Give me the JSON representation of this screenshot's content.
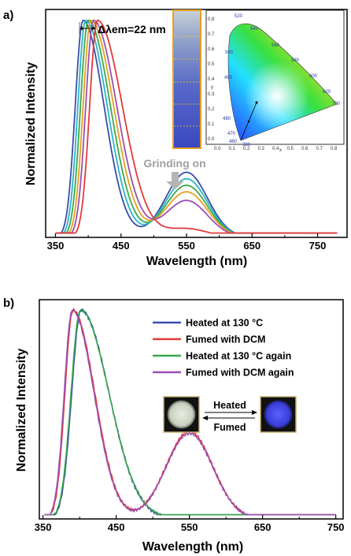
{
  "colors": {
    "blue": "#3a4ea8",
    "red": "#e23a3a",
    "green": "#3aa84a",
    "purple": "#9b4fb4",
    "orange": "#e8a020",
    "cyan": "#29b5c8",
    "grey_arrow": "#b5b5b5"
  },
  "chart_data": [
    {
      "panel": "a)",
      "type": "line",
      "xlabel": "Wavelength (nm)",
      "ylabel": "Normalized Intensity",
      "xlim": [
        335,
        795
      ],
      "ylim": [
        0,
        1.05
      ],
      "xticks": [
        "350",
        "450",
        "550",
        "650",
        "750"
      ],
      "annotations": {
        "shift": "Δλem=22 nm",
        "grinding": "Grinding on"
      },
      "series": [
        {
          "color": "#3a4ea8",
          "peak": 392,
          "width_l": 14,
          "width_r": 38,
          "peak2": 550,
          "amp2": 0.3
        },
        {
          "color": "#29b5c8",
          "peak": 396,
          "width_l": 14,
          "width_r": 39,
          "peak2": 550,
          "amp2": 0.27
        },
        {
          "color": "#3aa84a",
          "peak": 400,
          "width_l": 14,
          "width_r": 40,
          "peak2": 550,
          "amp2": 0.24
        },
        {
          "color": "#e8a020",
          "peak": 404,
          "width_l": 14,
          "width_r": 41,
          "peak2": 550,
          "amp2": 0.21
        },
        {
          "color": "#9b4fb4",
          "peak": 408,
          "width_l": 14,
          "width_r": 42,
          "peak2": 550,
          "amp2": 0.17
        },
        {
          "color": "#e23a3a",
          "peak": 414,
          "width_l": 14,
          "width_r": 45,
          "peak2": 550,
          "amp2": 0.04
        }
      ],
      "inset_cie": {
        "xlabel": "x",
        "ylabel": "y",
        "ticks": [
          "0.0",
          "0.1",
          "0.2",
          "0.3",
          "0.4",
          "0.5",
          "0.6",
          "0.7",
          "0.8"
        ],
        "wavelengths": [
          "520",
          "540",
          "560",
          "580",
          "600",
          "620",
          "700",
          "500",
          "490",
          "480",
          "470",
          "460",
          "380"
        ]
      }
    },
    {
      "panel": "b)",
      "type": "line",
      "xlabel": "Wavelength (nm)",
      "ylabel": "Normalized Intensity",
      "xlim": [
        345,
        760
      ],
      "ylim": [
        0,
        1.05
      ],
      "xticks": [
        "350",
        "450",
        "550",
        "650",
        "750"
      ],
      "series": [
        {
          "name": "Heated at 130 °C",
          "color": "#3a4ea8",
          "peak": 402,
          "width_l": 15,
          "width_r": 45,
          "amp2": 0.0
        },
        {
          "name": "Fumed with DCM",
          "color": "#e23a3a",
          "peak": 391,
          "width_l": 13,
          "width_r": 35,
          "amp2": 0.42
        },
        {
          "name": "Heated at 130 °C again",
          "color": "#3aa84a",
          "peak": 401,
          "width_l": 15,
          "width_r": 46,
          "amp2": 0.0
        },
        {
          "name": "Fumed with DCM again",
          "color": "#9b4fb4",
          "peak": 390,
          "width_l": 13,
          "width_r": 35,
          "amp2": 0.41
        }
      ],
      "inset_labels": {
        "heated": "Heated",
        "fumed": "Fumed"
      }
    }
  ]
}
